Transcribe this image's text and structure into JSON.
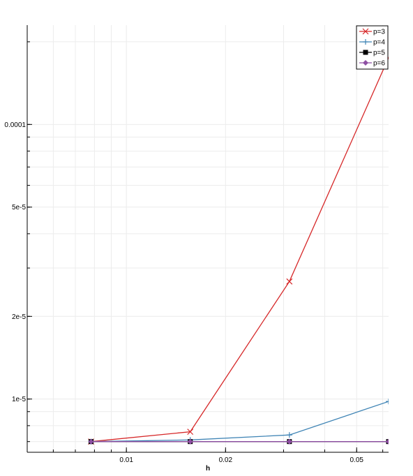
{
  "chart_data": {
    "type": "line",
    "title": "",
    "xlabel": "h",
    "ylabel": "",
    "x_scale": "log",
    "y_scale": "log",
    "xlim": [
      0.005,
      0.0625
    ],
    "ylim": [
      6.4e-06,
      0.00023
    ],
    "grid": true,
    "legend_position": "top-right",
    "x_ticks": [
      {
        "value": 0.01,
        "label": "0.01"
      },
      {
        "value": 0.02,
        "label": "0.02"
      },
      {
        "value": 0.05,
        "label": "0.05"
      }
    ],
    "y_ticks": [
      {
        "value": 0.0001,
        "label": "0.0001"
      },
      {
        "value": 5e-05,
        "label": "5e-5"
      },
      {
        "value": 2e-05,
        "label": "2e-5"
      },
      {
        "value": 1e-05,
        "label": "1e-5"
      }
    ],
    "x": [
      0.0078125,
      0.015625,
      0.03125,
      0.0625
    ],
    "series": [
      {
        "name": "p=3",
        "color": "#d62728",
        "marker": "x",
        "values": [
          7e-06,
          7.6e-06,
          2.68e-05,
          0.000175
        ]
      },
      {
        "name": "p=4",
        "color": "#3f84b5",
        "marker": "plus",
        "values": [
          7e-06,
          7.1e-06,
          7.4e-06,
          9.8e-06
        ]
      },
      {
        "name": "p=5",
        "color": "#000000",
        "marker": "square",
        "values": [
          7e-06,
          7e-06,
          7e-06,
          7e-06
        ]
      },
      {
        "name": "p=6",
        "color": "#8e4fa3",
        "marker": "diamond",
        "values": [
          7e-06,
          7e-06,
          7e-06,
          7e-06
        ]
      }
    ]
  }
}
